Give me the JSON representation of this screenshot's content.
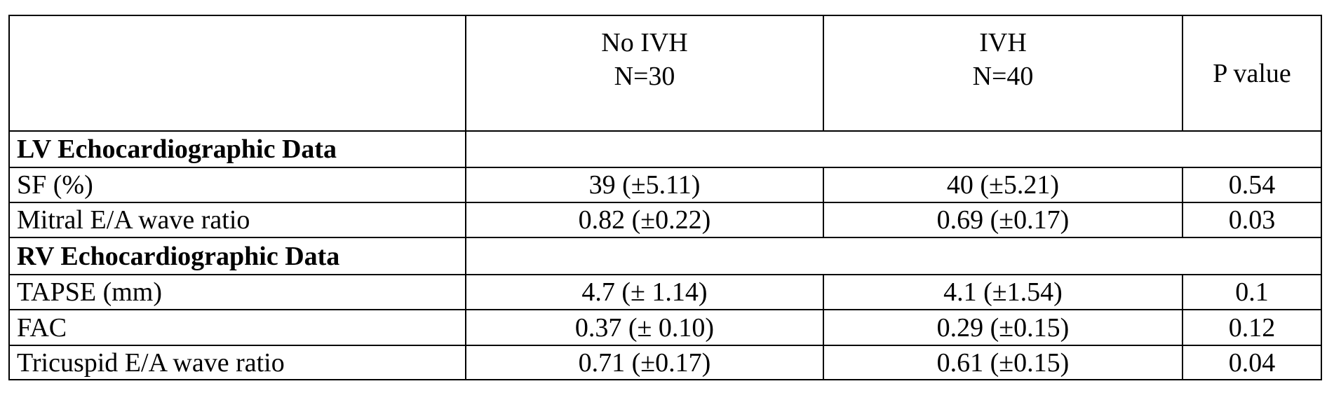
{
  "header": {
    "groups": [
      {
        "name": "No IVH",
        "n": "N=30"
      },
      {
        "name": "IVH",
        "n": "N=40"
      }
    ],
    "p_value": "P value"
  },
  "sections": [
    {
      "title": "LV Echocardiographic Data",
      "rows": [
        [
          "SF (%)",
          "39 (±5.11)",
          "40 (±5.21)",
          "0.54"
        ],
        [
          "Mitral E/A wave ratio",
          "0.82 (±0.22)",
          "0.69 (±0.17)",
          "0.03"
        ]
      ]
    },
    {
      "title": "RV Echocardiographic Data",
      "rows": [
        [
          "TAPSE (mm)",
          "4.7 (± 1.14)",
          "4.1 (±1.54)",
          "0.1"
        ],
        [
          "FAC",
          "0.37 (± 0.10)",
          "0.29 (±0.15)",
          "0.12"
        ],
        [
          "Tricuspid E/A wave ratio",
          "0.71 (±0.17)",
          "0.61 (±0.15)",
          "0.04"
        ]
      ]
    }
  ]
}
